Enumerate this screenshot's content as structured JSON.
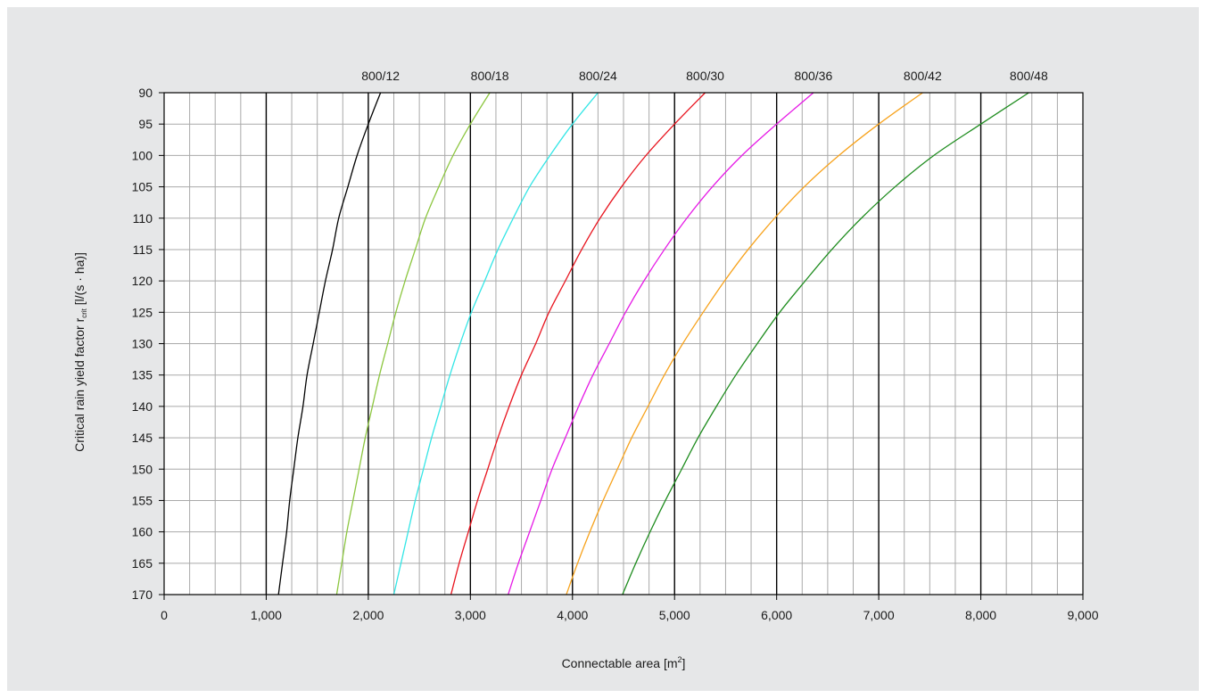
{
  "chart_data": {
    "type": "line",
    "xlabel": {
      "text": "Connectable area [m",
      "sup": "2",
      "tail": "]"
    },
    "ylabel": {
      "text": "Critical rain yield factor r",
      "sub": "crit",
      "tail": " [l/(s · ha)]"
    },
    "xlim": [
      0,
      9000
    ],
    "ylim": [
      90,
      170
    ],
    "y_inverted": true,
    "x_major_ticks": [
      0,
      1000,
      2000,
      3000,
      4000,
      5000,
      6000,
      7000,
      8000,
      9000
    ],
    "x_tick_labels": [
      "0",
      "1,000",
      "2,000",
      "3,000",
      "4,000",
      "5,000",
      "6,000",
      "7,000",
      "8,000",
      "9,000"
    ],
    "x_minor_step": 250,
    "y_ticks": [
      90,
      95,
      100,
      105,
      110,
      115,
      120,
      125,
      130,
      135,
      140,
      145,
      150,
      155,
      160,
      165,
      170
    ],
    "y_tick_labels": [
      "90",
      "95",
      "100",
      "105",
      "110",
      "115",
      "120",
      "125",
      "130",
      "135",
      "140",
      "145",
      "150",
      "155",
      "160",
      "165",
      "170"
    ],
    "grid": true,
    "legend": "series labels above plot",
    "series": [
      {
        "name": "800/12",
        "color": "#000000",
        "points": [
          [
            2120,
            90
          ],
          [
            2000,
            95
          ],
          [
            1890,
            100
          ],
          [
            1800,
            105
          ],
          [
            1710,
            110
          ],
          [
            1650,
            115
          ],
          [
            1580,
            120
          ],
          [
            1520,
            125
          ],
          [
            1460,
            130
          ],
          [
            1400,
            135
          ],
          [
            1360,
            140
          ],
          [
            1310,
            145
          ],
          [
            1270,
            150
          ],
          [
            1230,
            155
          ],
          [
            1200,
            160
          ],
          [
            1160,
            165
          ],
          [
            1120,
            170
          ]
        ]
      },
      {
        "name": "800/18",
        "color": "#8cc63f",
        "points": [
          [
            3190,
            90
          ],
          [
            3000,
            95
          ],
          [
            2830,
            100
          ],
          [
            2690,
            105
          ],
          [
            2560,
            110
          ],
          [
            2460,
            115
          ],
          [
            2360,
            120
          ],
          [
            2270,
            125
          ],
          [
            2190,
            130
          ],
          [
            2110,
            135
          ],
          [
            2040,
            140
          ],
          [
            1970,
            145
          ],
          [
            1910,
            150
          ],
          [
            1850,
            155
          ],
          [
            1790,
            160
          ],
          [
            1740,
            165
          ],
          [
            1690,
            170
          ]
        ]
      },
      {
        "name": "800/24",
        "color": "#33e6e6",
        "points": [
          [
            4250,
            90
          ],
          [
            4000,
            95
          ],
          [
            3780,
            100
          ],
          [
            3580,
            105
          ],
          [
            3420,
            110
          ],
          [
            3270,
            115
          ],
          [
            3140,
            120
          ],
          [
            3010,
            125
          ],
          [
            2900,
            130
          ],
          [
            2800,
            135
          ],
          [
            2710,
            140
          ],
          [
            2620,
            145
          ],
          [
            2540,
            150
          ],
          [
            2460,
            155
          ],
          [
            2390,
            160
          ],
          [
            2320,
            165
          ],
          [
            2250,
            170
          ]
        ]
      },
      {
        "name": "800/30",
        "color": "#e8141e",
        "points": [
          [
            5300,
            90
          ],
          [
            5000,
            95
          ],
          [
            4720,
            100
          ],
          [
            4480,
            105
          ],
          [
            4270,
            110
          ],
          [
            4090,
            115
          ],
          [
            3930,
            120
          ],
          [
            3770,
            125
          ],
          [
            3640,
            130
          ],
          [
            3500,
            135
          ],
          [
            3380,
            140
          ],
          [
            3270,
            145
          ],
          [
            3170,
            150
          ],
          [
            3070,
            155
          ],
          [
            2980,
            160
          ],
          [
            2890,
            165
          ],
          [
            2810,
            170
          ]
        ]
      },
      {
        "name": "800/36",
        "color": "#e619e6",
        "points": [
          [
            6360,
            90
          ],
          [
            6000,
            95
          ],
          [
            5660,
            100
          ],
          [
            5370,
            105
          ],
          [
            5120,
            110
          ],
          [
            4900,
            115
          ],
          [
            4700,
            120
          ],
          [
            4520,
            125
          ],
          [
            4360,
            130
          ],
          [
            4200,
            135
          ],
          [
            4060,
            140
          ],
          [
            3930,
            145
          ],
          [
            3800,
            150
          ],
          [
            3690,
            155
          ],
          [
            3580,
            160
          ],
          [
            3470,
            165
          ],
          [
            3370,
            170
          ]
        ]
      },
      {
        "name": "800/42",
        "color": "#f7a21b",
        "points": [
          [
            7430,
            90
          ],
          [
            7000,
            95
          ],
          [
            6610,
            100
          ],
          [
            6270,
            105
          ],
          [
            5980,
            110
          ],
          [
            5720,
            115
          ],
          [
            5490,
            120
          ],
          [
            5280,
            125
          ],
          [
            5080,
            130
          ],
          [
            4900,
            135
          ],
          [
            4740,
            140
          ],
          [
            4580,
            145
          ],
          [
            4440,
            150
          ],
          [
            4300,
            155
          ],
          [
            4170,
            160
          ],
          [
            4050,
            165
          ],
          [
            3940,
            170
          ]
        ]
      },
      {
        "name": "800/48",
        "color": "#1e8c1e",
        "points": [
          [
            8470,
            90
          ],
          [
            8000,
            95
          ],
          [
            7540,
            100
          ],
          [
            7160,
            105
          ],
          [
            6830,
            110
          ],
          [
            6540,
            115
          ],
          [
            6280,
            120
          ],
          [
            6030,
            125
          ],
          [
            5810,
            130
          ],
          [
            5600,
            135
          ],
          [
            5410,
            140
          ],
          [
            5230,
            145
          ],
          [
            5070,
            150
          ],
          [
            4910,
            155
          ],
          [
            4760,
            160
          ],
          [
            4620,
            165
          ],
          [
            4490,
            170
          ]
        ]
      }
    ]
  }
}
